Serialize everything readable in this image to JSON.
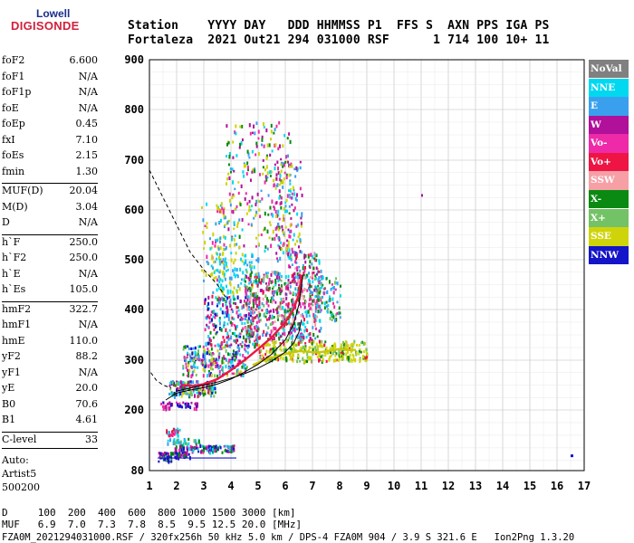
{
  "logo": {
    "line1": "Lowell",
    "line2": "DIGISONDE"
  },
  "header": {
    "line1": "Station    YYYY DAY   DDD HHMMSS P1  FFS S  AXN PPS IGA PS",
    "line2": "Fortaleza  2021 Out21 294 031000 RSF      1 714 100 10+ 11"
  },
  "params": [
    {
      "label": "foF2",
      "value": "6.600"
    },
    {
      "label": "foF1",
      "value": "N/A"
    },
    {
      "label": "foF1p",
      "value": "N/A"
    },
    {
      "label": "foE",
      "value": "N/A"
    },
    {
      "label": "foEp",
      "value": "0.45"
    },
    {
      "label": "fxI",
      "value": "7.10"
    },
    {
      "label": "foEs",
      "value": "2.15"
    },
    {
      "label": "fmin",
      "value": "1.30"
    },
    {
      "label": "MUF(D)",
      "value": "20.04"
    },
    {
      "label": "M(D)",
      "value": "3.04"
    },
    {
      "label": "D",
      "value": "N/A"
    },
    {
      "label": "h`F",
      "value": "250.0"
    },
    {
      "label": "h`F2",
      "value": "250.0"
    },
    {
      "label": "h`E",
      "value": "N/A"
    },
    {
      "label": "h`Es",
      "value": "105.0"
    },
    {
      "label": "hmF2",
      "value": "322.7"
    },
    {
      "label": "hmF1",
      "value": "N/A"
    },
    {
      "label": "hmE",
      "value": "110.0"
    },
    {
      "label": "yF2",
      "value": "88.2"
    },
    {
      "label": "yF1",
      "value": "N/A"
    },
    {
      "label": "yE",
      "value": "20.0"
    },
    {
      "label": "B0",
      "value": "70.6"
    },
    {
      "label": "B1",
      "value": "4.61"
    },
    {
      "label": "C-level",
      "value": "33"
    }
  ],
  "auto": {
    "line1": "Auto:",
    "line2": "Artist5",
    "line3": "500200"
  },
  "legend": [
    {
      "label": "NoVal",
      "color": "#808080"
    },
    {
      "label": "NNE",
      "color": "#00d8f0"
    },
    {
      "label": "E",
      "color": "#3aa0ee"
    },
    {
      "label": "W",
      "color": "#b0109a"
    },
    {
      "label": "Vo-",
      "color": "#ee2aa8"
    },
    {
      "label": "Vo+",
      "color": "#ee1444"
    },
    {
      "label": "SSW",
      "color": "#f6a0a6"
    },
    {
      "label": "X-",
      "color": "#0a8a12"
    },
    {
      "label": "X+",
      "color": "#74c266"
    },
    {
      "label": "SSE",
      "color": "#cfd40a"
    },
    {
      "label": "NNW",
      "color": "#1414c8"
    }
  ],
  "footer": {
    "line1": "D     100  200  400  600  800 1000 1500 3000 [km]",
    "line2": "MUF   6.9  7.0  7.3  7.8  8.5  9.5 12.5 20.0 [MHz]",
    "line3": "FZA0M_2021294031000.RSF / 320fx256h 50 kHz 5.0 km / DPS-4 FZA0M 904 / 3.9 S 321.6 E   Ion2Png 1.3.20"
  },
  "chart_data": {
    "type": "scatter",
    "xlim": [
      1,
      17
    ],
    "ylim": [
      80,
      900
    ],
    "x_ticks": [
      1,
      2,
      3,
      4,
      5,
      6,
      7,
      8,
      9,
      10,
      11,
      12,
      13,
      14,
      15,
      16,
      17
    ],
    "y_ticks": [
      80,
      200,
      300,
      400,
      500,
      600,
      700,
      800,
      900
    ],
    "grid": true,
    "profile_curve": [
      [
        2.0,
        238
      ],
      [
        2.5,
        244
      ],
      [
        3.0,
        250
      ],
      [
        3.5,
        256
      ],
      [
        4.0,
        264
      ],
      [
        4.5,
        273
      ],
      [
        5.0,
        284
      ],
      [
        5.5,
        298
      ],
      [
        6.0,
        316
      ],
      [
        6.3,
        333
      ],
      [
        6.5,
        355
      ],
      [
        6.6,
        380
      ]
    ],
    "trace_curve": [
      [
        1.6,
        220
      ],
      [
        2.0,
        234
      ],
      [
        2.5,
        240
      ],
      [
        3.0,
        245
      ],
      [
        3.5,
        252
      ],
      [
        4.0,
        262
      ],
      [
        4.5,
        276
      ],
      [
        5.0,
        292
      ],
      [
        5.5,
        312
      ],
      [
        6.0,
        340
      ],
      [
        6.3,
        370
      ],
      [
        6.5,
        410
      ],
      [
        6.6,
        450
      ],
      [
        6.65,
        470
      ]
    ],
    "o_trace": [
      [
        2.2,
        250
      ],
      [
        2.6,
        248
      ],
      [
        3.0,
        252
      ],
      [
        3.5,
        262
      ],
      [
        4.0,
        280
      ],
      [
        4.5,
        300
      ],
      [
        5.0,
        322
      ],
      [
        5.5,
        345
      ],
      [
        6.0,
        375
      ],
      [
        6.3,
        400
      ],
      [
        6.5,
        430
      ],
      [
        6.6,
        470
      ]
    ],
    "x_trace": [
      [
        4.8,
        290
      ],
      [
        5.2,
        300
      ],
      [
        5.8,
        310
      ],
      [
        6.5,
        318
      ],
      [
        7.2,
        315
      ],
      [
        8.0,
        322
      ],
      [
        8.6,
        320
      ]
    ],
    "muf_dashed": [
      [
        1.0,
        680
      ],
      [
        1.5,
        625
      ],
      [
        2.0,
        570
      ],
      [
        2.5,
        515
      ],
      [
        3.0,
        480
      ],
      [
        3.5,
        450
      ],
      [
        3.8,
        425
      ]
    ],
    "ordinary_dashed": [
      [
        1.05,
        275
      ],
      [
        1.25,
        260
      ],
      [
        1.5,
        250
      ],
      [
        1.8,
        244
      ]
    ],
    "es_trace": {
      "x_start": 1.3,
      "x_end": 4.2,
      "height": 105
    },
    "isolated_points": [
      [
        11.0,
        632
      ],
      [
        16.5,
        112
      ]
    ]
  }
}
